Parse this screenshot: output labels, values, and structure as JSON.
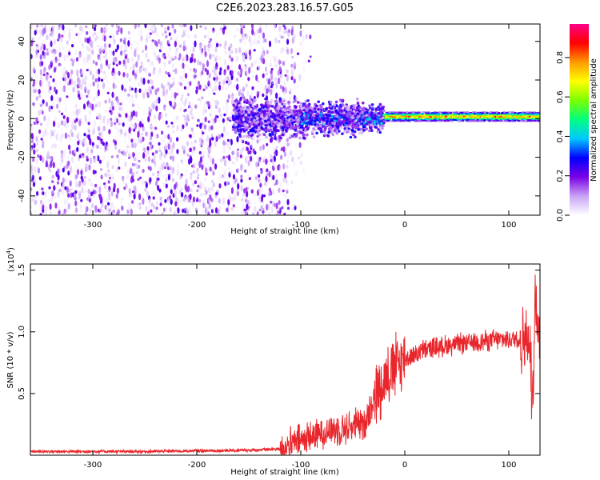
{
  "figure": {
    "title": "C2E6.2023.283.16.57.G05"
  },
  "chart_data": [
    {
      "type": "heatmap",
      "xlabel": "Height of straight line (km)",
      "ylabel": "Frequency (Hz)",
      "xlim": [
        -360,
        130
      ],
      "ylim": [
        -50,
        49
      ],
      "x_ticks": [
        -300,
        -200,
        -100,
        0,
        100
      ],
      "y_ticks": [
        -40,
        -20,
        0,
        20,
        40
      ],
      "grid": false,
      "description_regions": [
        {
          "x_range": [
            -360,
            -120
          ],
          "freq_range": [
            -50,
            49
          ],
          "amplitude": [
            0.0,
            0.2
          ]
        },
        {
          "x_range": [
            -165,
            -20
          ],
          "freq_range": [
            -12,
            10
          ],
          "amplitude": [
            0.05,
            0.4
          ]
        },
        {
          "x_range": [
            -20,
            130
          ],
          "freq_range": [
            -1,
            3
          ],
          "amplitude": [
            0.5,
            0.95
          ]
        }
      ],
      "colorbar": {
        "label": "Normalized spectral amplitude",
        "range": [
          0.0,
          0.97
        ],
        "ticks": [
          0.0,
          0.2,
          0.4,
          0.6,
          0.8
        ],
        "tick_labels": [
          "0.0",
          "0.2",
          "0.4",
          "0.6",
          "0.8"
        ],
        "colors": [
          "#ffffff",
          "#c9a3f5",
          "#7a00e6",
          "#0000ff",
          "#00c8ff",
          "#00ff80",
          "#7aff00",
          "#ffff00",
          "#ff9a00",
          "#ff0000",
          "#ff0088"
        ]
      }
    },
    {
      "type": "line",
      "xlabel": "Height of straight line (km)",
      "ylabel": "SNR (10 * v/v)",
      "y_multiplier": "(x10",
      "y_multiplier_exp": "4",
      "y_multiplier_close": ")",
      "xlim": [
        -360,
        130
      ],
      "ylim": [
        0.0,
        1.55
      ],
      "x_ticks": [
        -300,
        -200,
        -100,
        0,
        100
      ],
      "y_ticks": [
        0.5,
        1.0,
        1.5
      ],
      "y_tick_labels": [
        "0.5",
        "1.0",
        "1.5"
      ],
      "grid": false,
      "series": [
        {
          "color": "#e8262b",
          "points": [
            [
              -360,
              0.03
            ],
            [
              -300,
              0.03
            ],
            [
              -250,
              0.03
            ],
            [
              -200,
              0.035
            ],
            [
              -150,
              0.04
            ],
            [
              -120,
              0.05
            ],
            [
              -100,
              0.12
            ],
            [
              -80,
              0.18
            ],
            [
              -60,
              0.22
            ],
            [
              -40,
              0.25
            ],
            [
              -30,
              0.45
            ],
            [
              -20,
              0.62
            ],
            [
              -10,
              0.72
            ],
            [
              0,
              0.78
            ],
            [
              20,
              0.86
            ],
            [
              40,
              0.89
            ],
            [
              60,
              0.91
            ],
            [
              80,
              0.93
            ],
            [
              100,
              0.94
            ],
            [
              115,
              0.95
            ],
            [
              120,
              0.9
            ],
            [
              123,
              0.35
            ],
            [
              125,
              1.4
            ],
            [
              128,
              1.0
            ],
            [
              130,
              0.95
            ]
          ]
        }
      ]
    }
  ]
}
